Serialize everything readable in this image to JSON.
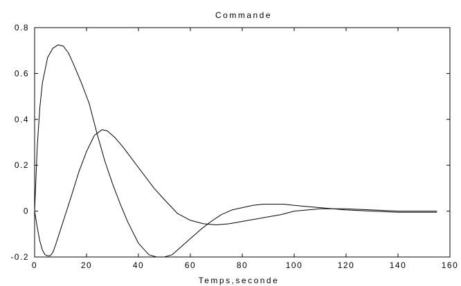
{
  "chart_data": {
    "type": "line",
    "title": "Commande",
    "xlabel": "Temps,seconde",
    "ylabel": "",
    "xlim": [
      0,
      160
    ],
    "ylim": [
      -0.2,
      0.8
    ],
    "x_ticks": [
      0,
      20,
      40,
      60,
      80,
      100,
      120,
      140,
      160
    ],
    "y_ticks": [
      -0.2,
      0,
      0.2,
      0.4,
      0.6,
      0.8
    ],
    "x_tick_labels": [
      "0",
      "20",
      "40",
      "60",
      "80",
      "100",
      "120",
      "140",
      "160"
    ],
    "y_tick_labels": [
      "-0.2",
      "0",
      "0.2",
      "0.4",
      "0.6",
      "0.8"
    ],
    "grid": false,
    "line_color": "#000000",
    "series": [
      {
        "x": [
          0,
          1,
          2,
          3,
          5,
          7,
          9,
          11,
          13,
          15,
          18,
          21,
          24,
          27,
          30,
          33,
          36,
          40,
          44,
          47,
          50,
          53,
          56,
          60,
          64,
          68,
          72,
          76,
          80,
          84,
          88,
          92,
          96,
          100,
          105,
          110,
          115,
          120,
          130,
          140,
          150,
          155
        ],
        "y": [
          0,
          0.28,
          0.45,
          0.56,
          0.67,
          0.71,
          0.725,
          0.72,
          0.69,
          0.64,
          0.56,
          0.47,
          0.34,
          0.22,
          0.12,
          0.03,
          -0.05,
          -0.14,
          -0.19,
          -0.2,
          -0.2,
          -0.19,
          -0.16,
          -0.12,
          -0.08,
          -0.045,
          -0.015,
          0.005,
          0.015,
          0.025,
          0.03,
          0.03,
          0.03,
          0.025,
          0.02,
          0.015,
          0.01,
          0.005,
          0.0,
          -0.005,
          -0.005,
          -0.005
        ]
      },
      {
        "x": [
          0,
          1,
          2,
          3,
          4,
          5,
          6,
          7,
          8,
          10,
          12,
          14,
          17,
          20,
          23,
          26,
          28,
          31,
          34,
          38,
          42,
          46,
          50,
          55,
          60,
          65,
          70,
          75,
          80,
          85,
          90,
          95,
          100,
          110,
          120,
          130,
          140,
          150,
          155
        ],
        "y": [
          0,
          -0.07,
          -0.13,
          -0.17,
          -0.19,
          -0.195,
          -0.195,
          -0.18,
          -0.15,
          -0.08,
          -0.01,
          0.06,
          0.17,
          0.26,
          0.33,
          0.355,
          0.35,
          0.32,
          0.28,
          0.22,
          0.16,
          0.1,
          0.05,
          -0.01,
          -0.04,
          -0.055,
          -0.06,
          -0.055,
          -0.045,
          -0.035,
          -0.025,
          -0.015,
          0.0,
          0.01,
          0.01,
          0.005,
          0.0,
          0.0,
          0.0
        ]
      }
    ]
  }
}
